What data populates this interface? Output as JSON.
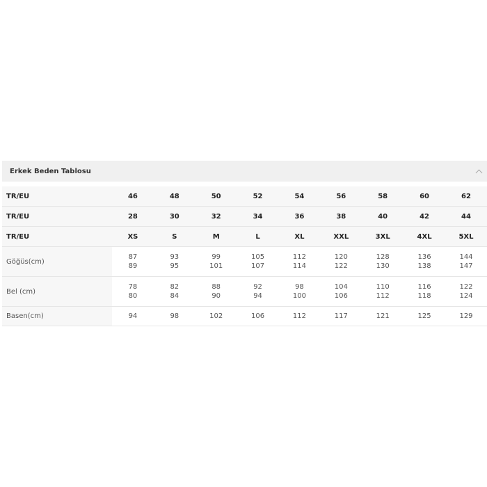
{
  "accordion": {
    "title": "Erkek Beden Tablosu",
    "icon": "chevron-up-icon"
  },
  "table": {
    "header_rows": [
      {
        "label": "TR/EU",
        "values": [
          "46",
          "48",
          "50",
          "52",
          "54",
          "56",
          "58",
          "60",
          "62"
        ]
      },
      {
        "label": "TR/EU",
        "values": [
          "28",
          "30",
          "32",
          "34",
          "36",
          "38",
          "40",
          "42",
          "44"
        ]
      },
      {
        "label": "TR/EU",
        "values": [
          "XS",
          "S",
          "M",
          "L",
          "XL",
          "XXL",
          "3XL",
          "4XL",
          "5XL"
        ]
      }
    ],
    "body_rows": [
      {
        "label": "Göğüs(cm)",
        "values": [
          [
            "87",
            "89"
          ],
          [
            "93",
            "95"
          ],
          [
            "99",
            "101"
          ],
          [
            "105",
            "107"
          ],
          [
            "112",
            "114"
          ],
          [
            "120",
            "122"
          ],
          [
            "128",
            "130"
          ],
          [
            "136",
            "138"
          ],
          [
            "144",
            "147"
          ]
        ]
      },
      {
        "label": "Bel (cm)",
        "values": [
          [
            "78",
            "80"
          ],
          [
            "82",
            "84"
          ],
          [
            "88",
            "90"
          ],
          [
            "92",
            "94"
          ],
          [
            "98",
            "100"
          ],
          [
            "104",
            "106"
          ],
          [
            "110",
            "112"
          ],
          [
            "116",
            "118"
          ],
          [
            "122",
            "124"
          ]
        ]
      },
      {
        "label": "Basen(cm)",
        "values": [
          [
            "94"
          ],
          [
            "98"
          ],
          [
            "102"
          ],
          [
            "106"
          ],
          [
            "112"
          ],
          [
            "117"
          ],
          [
            "121"
          ],
          [
            "125"
          ],
          [
            "129"
          ]
        ]
      }
    ]
  }
}
